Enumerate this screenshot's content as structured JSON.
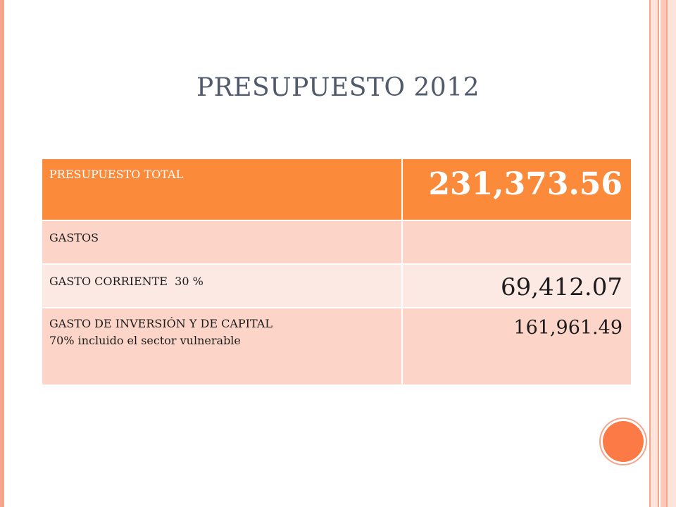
{
  "slide": {
    "title": "PRESUPUESTO 2012"
  },
  "table": {
    "rows": [
      {
        "label": "PRESUPUESTO TOTAL",
        "value": "231,373.56"
      },
      {
        "label": "GASTOS",
        "value": ""
      },
      {
        "label": "GASTO CORRIENTE  30 %",
        "value": "69,412.07"
      },
      {
        "label_line1": "GASTO DE INVERSIÓN Y DE CAPITAL",
        "label_line2": "70% incluido el sector vulnerable",
        "value": "161,961.49"
      }
    ]
  },
  "colors": {
    "header_orange": "#fb8a3a",
    "row_peach": "#fcd5c8",
    "row_light": "#fde9e4",
    "accent_dot": "#fb7a45",
    "title_text": "#505a6a"
  }
}
